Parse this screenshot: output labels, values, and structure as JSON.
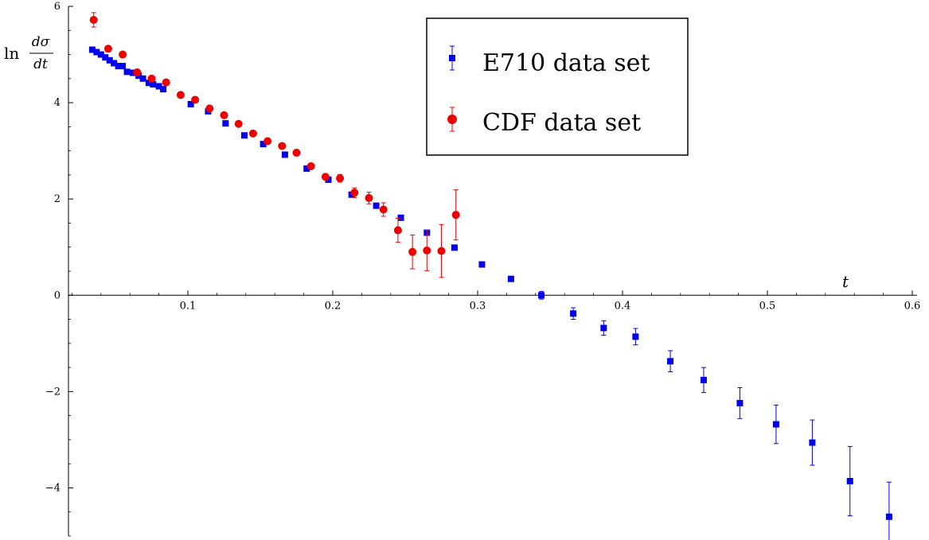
{
  "chart_data": {
    "type": "scatter",
    "xlabel": "t",
    "ylabel": {
      "prefix": "ln",
      "numerator": "dσ",
      "denominator": "dt"
    },
    "xlim": [
      0,
      0.6
    ],
    "ylim": [
      -5,
      6
    ],
    "xticks": [
      0.1,
      0.2,
      0.3,
      0.4,
      0.5,
      0.6
    ],
    "xtick_labels": [
      "0.1",
      "0.2",
      "0.3",
      "0.4",
      "0.5",
      "0.6"
    ],
    "yticks": [
      -4,
      -2,
      0,
      2,
      4,
      6
    ],
    "ytick_labels": [
      "−4",
      "−2",
      "0",
      "2",
      "4",
      "6"
    ],
    "legend": {
      "position": "top-right"
    },
    "series": [
      {
        "name": "E710 data set",
        "marker": "square",
        "color": "#0000ee",
        "points": [
          {
            "x": 0.034,
            "y": 5.1,
            "err": 0.03
          },
          {
            "x": 0.037,
            "y": 5.05,
            "err": 0.03
          },
          {
            "x": 0.04,
            "y": 5.0,
            "err": 0.03
          },
          {
            "x": 0.043,
            "y": 4.94,
            "err": 0.03
          },
          {
            "x": 0.046,
            "y": 4.88,
            "err": 0.03
          },
          {
            "x": 0.049,
            "y": 4.82,
            "err": 0.03
          },
          {
            "x": 0.052,
            "y": 4.76,
            "err": 0.03
          },
          {
            "x": 0.055,
            "y": 4.76,
            "err": 0.03
          },
          {
            "x": 0.058,
            "y": 4.64,
            "err": 0.03
          },
          {
            "x": 0.062,
            "y": 4.62,
            "err": 0.03
          },
          {
            "x": 0.066,
            "y": 4.56,
            "err": 0.03
          },
          {
            "x": 0.069,
            "y": 4.5,
            "err": 0.03
          },
          {
            "x": 0.073,
            "y": 4.41,
            "err": 0.03
          },
          {
            "x": 0.076,
            "y": 4.38,
            "err": 0.03
          },
          {
            "x": 0.08,
            "y": 4.34,
            "err": 0.03
          },
          {
            "x": 0.083,
            "y": 4.28,
            "err": 0.03
          },
          {
            "x": 0.102,
            "y": 3.97,
            "err": 0.04
          },
          {
            "x": 0.114,
            "y": 3.82,
            "err": 0.04
          },
          {
            "x": 0.126,
            "y": 3.57,
            "err": 0.04
          },
          {
            "x": 0.139,
            "y": 3.32,
            "err": 0.04
          },
          {
            "x": 0.152,
            "y": 3.14,
            "err": 0.04
          },
          {
            "x": 0.167,
            "y": 2.92,
            "err": 0.05
          },
          {
            "x": 0.182,
            "y": 2.63,
            "err": 0.05
          },
          {
            "x": 0.197,
            "y": 2.4,
            "err": 0.05
          },
          {
            "x": 0.213,
            "y": 2.09,
            "err": 0.05
          },
          {
            "x": 0.23,
            "y": 1.86,
            "err": 0.05
          },
          {
            "x": 0.247,
            "y": 1.61,
            "err": 0.05
          },
          {
            "x": 0.265,
            "y": 1.3,
            "err": 0.05
          },
          {
            "x": 0.284,
            "y": 0.99,
            "err": 0.05
          },
          {
            "x": 0.303,
            "y": 0.64,
            "err": 0.05
          },
          {
            "x": 0.323,
            "y": 0.34,
            "err": 0.06
          },
          {
            "x": 0.344,
            "y": 0.0,
            "err": 0.08
          },
          {
            "x": 0.366,
            "y": -0.38,
            "err": 0.12
          },
          {
            "x": 0.387,
            "y": -0.68,
            "err": 0.15
          },
          {
            "x": 0.409,
            "y": -0.86,
            "err": 0.17
          },
          {
            "x": 0.433,
            "y": -1.37,
            "err": 0.22
          },
          {
            "x": 0.456,
            "y": -1.76,
            "err": 0.26
          },
          {
            "x": 0.481,
            "y": -2.24,
            "err": 0.32
          },
          {
            "x": 0.506,
            "y": -2.68,
            "err": 0.4
          },
          {
            "x": 0.531,
            "y": -3.06,
            "err": 0.47
          },
          {
            "x": 0.557,
            "y": -3.86,
            "err": 0.72
          },
          {
            "x": 0.584,
            "y": -4.6,
            "err": 0.72
          }
        ]
      },
      {
        "name": "CDF data set",
        "marker": "circle",
        "color": "#ee0000",
        "points": [
          {
            "x": 0.035,
            "y": 5.72,
            "err": 0.15
          },
          {
            "x": 0.045,
            "y": 5.12,
            "err": 0.03
          },
          {
            "x": 0.055,
            "y": 5.0,
            "err": 0.03
          },
          {
            "x": 0.065,
            "y": 4.63,
            "err": 0.03
          },
          {
            "x": 0.075,
            "y": 4.5,
            "err": 0.03
          },
          {
            "x": 0.085,
            "y": 4.42,
            "err": 0.03
          },
          {
            "x": 0.095,
            "y": 4.16,
            "err": 0.03
          },
          {
            "x": 0.105,
            "y": 4.06,
            "err": 0.03
          },
          {
            "x": 0.115,
            "y": 3.88,
            "err": 0.03
          },
          {
            "x": 0.125,
            "y": 3.74,
            "err": 0.03
          },
          {
            "x": 0.135,
            "y": 3.56,
            "err": 0.03
          },
          {
            "x": 0.145,
            "y": 3.36,
            "err": 0.03
          },
          {
            "x": 0.155,
            "y": 3.2,
            "err": 0.03
          },
          {
            "x": 0.165,
            "y": 3.1,
            "err": 0.03
          },
          {
            "x": 0.175,
            "y": 2.96,
            "err": 0.03
          },
          {
            "x": 0.185,
            "y": 2.68,
            "err": 0.04
          },
          {
            "x": 0.195,
            "y": 2.46,
            "err": 0.04
          },
          {
            "x": 0.205,
            "y": 2.43,
            "err": 0.08
          },
          {
            "x": 0.215,
            "y": 2.13,
            "err": 0.1
          },
          {
            "x": 0.225,
            "y": 2.02,
            "err": 0.12
          },
          {
            "x": 0.235,
            "y": 1.78,
            "err": 0.14
          },
          {
            "x": 0.245,
            "y": 1.35,
            "err": 0.25
          },
          {
            "x": 0.255,
            "y": 0.9,
            "err": 0.35
          },
          {
            "x": 0.265,
            "y": 0.93,
            "err": 0.42
          },
          {
            "x": 0.275,
            "y": 0.92,
            "err": 0.55
          },
          {
            "x": 0.285,
            "y": 1.67,
            "err": 0.52
          }
        ]
      }
    ]
  }
}
